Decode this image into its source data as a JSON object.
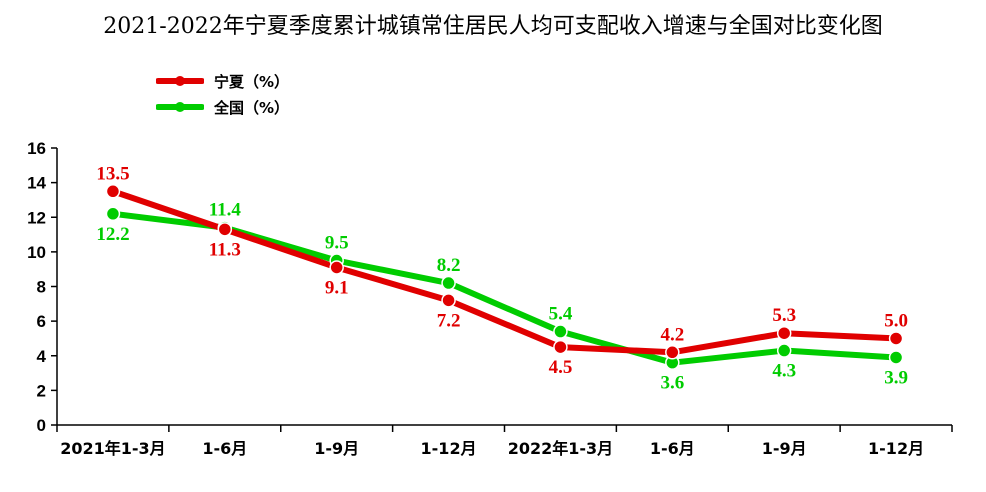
{
  "chart_data": {
    "type": "line",
    "title": "2021-2022年宁夏季度累计城镇常住居民人均可支配收入增速与全国对比变化图",
    "categories": [
      "2021年1-3月",
      "1-6月",
      "1-9月",
      "1-12月",
      "2022年1-3月",
      "1-6月",
      "1-9月",
      "1-12月"
    ],
    "series": [
      {
        "name": "宁夏（%）",
        "color": "#e00000",
        "values": [
          13.5,
          11.3,
          9.1,
          7.2,
          4.5,
          4.2,
          5.3,
          5.0
        ],
        "labels": [
          "13.5",
          "11.3",
          "9.1",
          "7.2",
          "4.5",
          "4.2",
          "5.3",
          "5.0"
        ]
      },
      {
        "name": "全国（%）",
        "color": "#00cc00",
        "values": [
          12.2,
          11.4,
          9.5,
          8.2,
          5.4,
          3.6,
          4.3,
          3.9
        ],
        "labels": [
          "12.2",
          "11.4",
          "9.5",
          "8.2",
          "5.4",
          "3.6",
          "4.3",
          "3.9"
        ]
      }
    ],
    "ylim": [
      0,
      16
    ],
    "yticks": [
      "0",
      "2",
      "4",
      "6",
      "8",
      "10",
      "12",
      "14",
      "16"
    ],
    "grid": false,
    "legend_position": "top-left",
    "data_labels": true
  }
}
